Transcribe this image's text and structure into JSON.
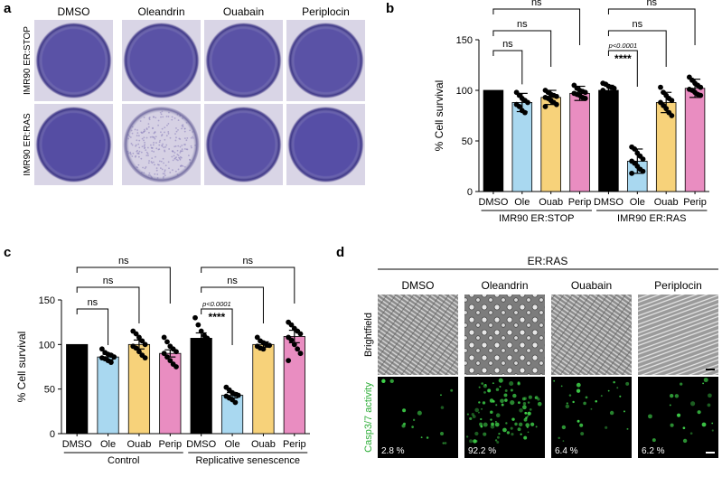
{
  "panels": {
    "a": {
      "letter": "a",
      "columns": [
        "DMSO",
        "Oleandrin",
        "Ouabain",
        "Periplocin"
      ],
      "rows": [
        "IMR90 ER:STOP",
        "IMR90 ER:RAS"
      ],
      "well_fill": [
        [
          "#5a52a6",
          "#5a52a6",
          "#5a52a6",
          "#5a52a6"
        ],
        [
          "#554da3",
          "#d6d1e4",
          "#5a52a6",
          "#564ea6"
        ]
      ]
    },
    "b": {
      "letter": "b",
      "ylabel": "% Cell survival",
      "ylim": [
        0,
        150
      ],
      "yticks": [
        0,
        50,
        100,
        150
      ],
      "categories": [
        "DMSO",
        "Ole",
        "Ouab",
        "Perip",
        "DMSO",
        "Ole",
        "Ouab",
        "Perip"
      ],
      "groups": [
        {
          "label": "IMR90 ER:STOP",
          "start": 0,
          "end": 3
        },
        {
          "label": "IMR90 ER:RAS",
          "start": 4,
          "end": 7
        }
      ],
      "colors": [
        "#000000",
        "#a9d8f0",
        "#f7d27a",
        "#e98dc1",
        "#000000",
        "#a9d8f0",
        "#f7d27a",
        "#e98dc1"
      ],
      "values": [
        100,
        88,
        93,
        97,
        100,
        30,
        88,
        102
      ],
      "errors": [
        0,
        9,
        7,
        7,
        5,
        12,
        10,
        9
      ],
      "points": [
        [],
        [
          98,
          95,
          92,
          90,
          88,
          86,
          84,
          80,
          78
        ],
        [
          100,
          98,
          96,
          95,
          94,
          93,
          92,
          90,
          88,
          86,
          84
        ],
        [
          105,
          102,
          100,
          99,
          98,
          97,
          96,
          95,
          93,
          92
        ],
        [
          107,
          106,
          104,
          103,
          102,
          100
        ],
        [
          44,
          42,
          38,
          35,
          32,
          30,
          28,
          25,
          22,
          20,
          18
        ],
        [
          103,
          98,
          95,
          92,
          90,
          88,
          85,
          82,
          78,
          75
        ],
        [
          113,
          110,
          107,
          105,
          103,
          101,
          100,
          98,
          96,
          95
        ]
      ],
      "brackets": [
        {
          "from": 0,
          "to": 1,
          "level": 1,
          "label": "ns"
        },
        {
          "from": 0,
          "to": 2,
          "level": 2,
          "label": "ns"
        },
        {
          "from": 0,
          "to": 3,
          "level": 3,
          "label": "ns"
        },
        {
          "from": 4,
          "to": 5,
          "level": 1,
          "label": "****",
          "note": "p<0.0001"
        },
        {
          "from": 4,
          "to": 6,
          "level": 2,
          "label": "ns"
        },
        {
          "from": 4,
          "to": 7,
          "level": 3,
          "label": "ns"
        }
      ]
    },
    "c": {
      "letter": "c",
      "ylabel": "% Cell survival",
      "ylim": [
        0,
        150
      ],
      "yticks": [
        0,
        50,
        100,
        150
      ],
      "categories": [
        "DMSO",
        "Ole",
        "Ouab",
        "Perip",
        "DMSO",
        "Ole",
        "Ouab",
        "Perip"
      ],
      "groups": [
        {
          "label": "Control",
          "start": 0,
          "end": 3
        },
        {
          "label": "Replicative senescence",
          "start": 4,
          "end": 7
        }
      ],
      "colors": [
        "#000000",
        "#a9d8f0",
        "#f7d27a",
        "#e98dc1",
        "#000000",
        "#a9d8f0",
        "#f7d27a",
        "#e98dc1"
      ],
      "values": [
        100,
        86,
        100,
        90,
        107,
        43,
        100,
        109
      ],
      "errors": [
        0,
        3,
        5,
        4,
        6,
        3,
        3,
        7
      ],
      "points": [
        [],
        [
          95,
          91,
          89,
          88,
          86,
          85,
          84,
          82,
          80
        ],
        [
          115,
          112,
          108,
          104,
          100,
          98,
          96,
          92,
          88,
          85
        ],
        [
          108,
          103,
          98,
          95,
          92,
          90,
          86,
          82,
          78,
          75
        ],
        [
          130,
          122,
          115,
          110,
          107,
          104,
          100,
          95
        ],
        [
          52,
          49,
          46,
          44,
          43,
          42,
          40,
          38,
          35
        ],
        [
          108,
          104,
          102,
          100,
          99,
          98,
          96,
          95
        ],
        [
          125,
          122,
          118,
          115,
          112,
          108,
          105,
          100,
          95,
          90,
          82
        ]
      ],
      "brackets": [
        {
          "from": 0,
          "to": 1,
          "level": 1,
          "label": "ns"
        },
        {
          "from": 0,
          "to": 2,
          "level": 2,
          "label": "ns"
        },
        {
          "from": 0,
          "to": 3,
          "level": 3,
          "label": "ns"
        },
        {
          "from": 4,
          "to": 5,
          "level": 1,
          "label": "****",
          "note": "p<0.0001"
        },
        {
          "from": 4,
          "to": 6,
          "level": 2,
          "label": "ns"
        },
        {
          "from": 4,
          "to": 7,
          "level": 3,
          "label": "ns"
        }
      ]
    },
    "d": {
      "letter": "d",
      "header": "ER:RAS",
      "columns": [
        "DMSO",
        "Oleandrin",
        "Ouabain",
        "Periplocin"
      ],
      "rows": [
        "Brightfield",
        "Casp3/7 activity"
      ],
      "row_colors": [
        "#000000",
        "#2fae3a"
      ],
      "percentages": [
        "2.8 %",
        "92.2 %",
        "6.4 %",
        "6.2 %"
      ],
      "green_density": [
        0.1,
        1.0,
        0.25,
        0.15
      ]
    }
  }
}
